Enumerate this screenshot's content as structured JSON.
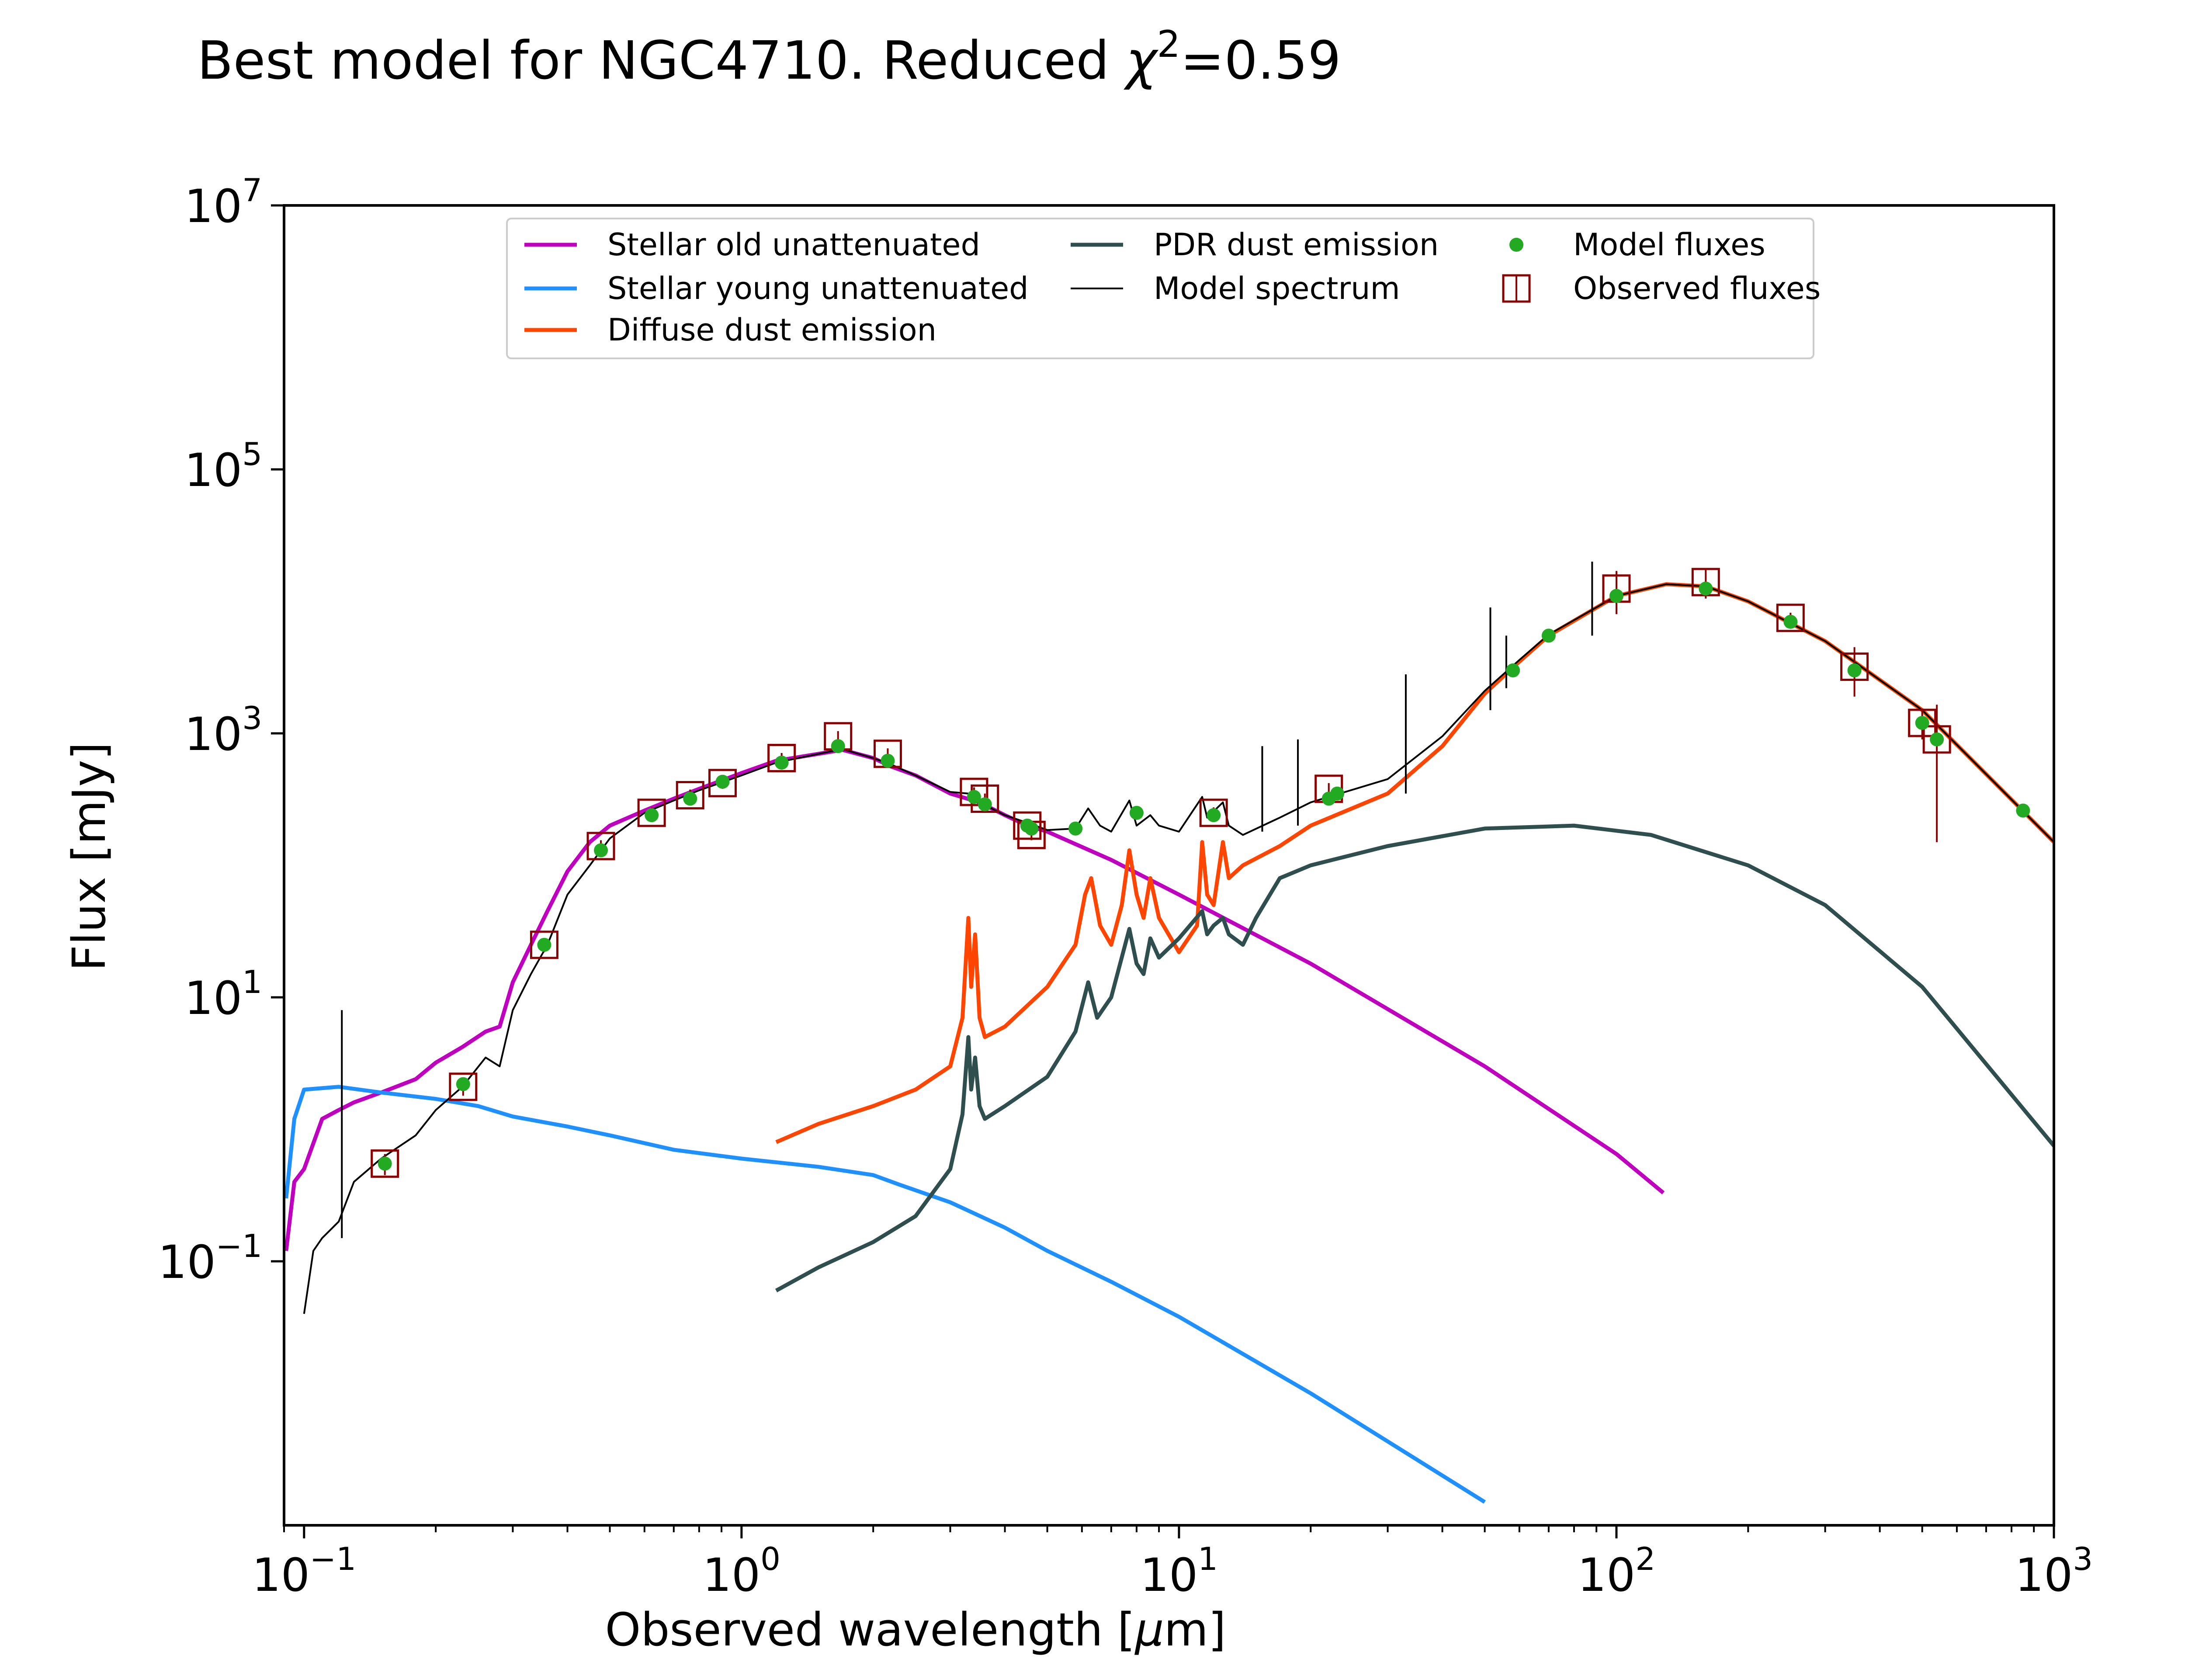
{
  "chart_data": {
    "type": "line",
    "title_main": "Best model for NGC4710. Reduced ",
    "title_chi": "χ",
    "title_sup": "2",
    "title_value": "=0.59",
    "xlabel_main": "Observed wavelength [",
    "xlabel_mu": "μ",
    "xlabel_end": "m]",
    "ylabel": "Flux [mJy]",
    "x_scale": "log",
    "y_scale": "log",
    "xlim": [
      0.09,
      1000
    ],
    "ylim": [
      0.001,
      10000000
    ],
    "x_ticks": [
      {
        "value": 0.1,
        "base": "10",
        "exp": "−1"
      },
      {
        "value": 1,
        "base": "10",
        "exp": "0"
      },
      {
        "value": 10,
        "base": "10",
        "exp": "1"
      },
      {
        "value": 100,
        "base": "10",
        "exp": "2"
      },
      {
        "value": 1000,
        "base": "10",
        "exp": "3"
      }
    ],
    "y_ticks": [
      {
        "value": 0.1,
        "base": "10",
        "exp": "−1"
      },
      {
        "value": 10,
        "base": "10",
        "exp": "1"
      },
      {
        "value": 1000,
        "base": "10",
        "exp": "3"
      },
      {
        "value": 100000,
        "base": "10",
        "exp": "5"
      },
      {
        "value": 10000000,
        "base": "10",
        "exp": "7"
      }
    ],
    "legend_position": "top-center",
    "legend": [
      {
        "label": "Stellar old unattenuated",
        "kind": "line",
        "color": "#bf00bf"
      },
      {
        "label": "Stellar young unattenuated",
        "kind": "line",
        "color": "#1e90ff"
      },
      {
        "label": "Diffuse dust emission",
        "kind": "line",
        "color": "#ff4500"
      },
      {
        "label": "PDR dust emission",
        "kind": "line",
        "color": "#2f4f4f"
      },
      {
        "label": "Model spectrum",
        "kind": "thinline",
        "color": "#000000"
      },
      {
        "label": "Model fluxes",
        "kind": "dot",
        "color": "#22aa22"
      },
      {
        "label": "Observed fluxes",
        "kind": "square",
        "color": "#8b0000"
      }
    ],
    "series": [
      {
        "name": "Stellar old unattenuated",
        "color": "#bf00bf",
        "points": [
          [
            0.091,
            0.12
          ],
          [
            0.095,
            0.4
          ],
          [
            0.1,
            0.5
          ],
          [
            0.11,
            1.2
          ],
          [
            0.12,
            1.4
          ],
          [
            0.13,
            1.6
          ],
          [
            0.15,
            1.9
          ],
          [
            0.18,
            2.4
          ],
          [
            0.2,
            3.2
          ],
          [
            0.23,
            4.2
          ],
          [
            0.26,
            5.5
          ],
          [
            0.28,
            6.0
          ],
          [
            0.3,
            13
          ],
          [
            0.33,
            25
          ],
          [
            0.36,
            45
          ],
          [
            0.4,
            90
          ],
          [
            0.45,
            150
          ],
          [
            0.5,
            200
          ],
          [
            0.6,
            260
          ],
          [
            0.7,
            320
          ],
          [
            0.8,
            380
          ],
          [
            1.0,
            500
          ],
          [
            1.2,
            620
          ],
          [
            1.5,
            700
          ],
          [
            1.7,
            750
          ],
          [
            2.0,
            650
          ],
          [
            2.2,
            560
          ],
          [
            2.5,
            480
          ],
          [
            3.0,
            350
          ],
          [
            3.5,
            300
          ],
          [
            4.0,
            240
          ],
          [
            4.5,
            200
          ],
          [
            5.0,
            180
          ],
          [
            7.0,
            110
          ],
          [
            10.0,
            60
          ],
          [
            20.0,
            18
          ],
          [
            50.0,
            3
          ],
          [
            100.0,
            0.65
          ],
          [
            128.0,
            0.33
          ]
        ]
      },
      {
        "name": "Stellar young unattenuated",
        "color": "#1e90ff",
        "points": [
          [
            0.091,
            0.3
          ],
          [
            0.095,
            1.2
          ],
          [
            0.1,
            2.0
          ],
          [
            0.12,
            2.1
          ],
          [
            0.15,
            1.9
          ],
          [
            0.2,
            1.7
          ],
          [
            0.25,
            1.5
          ],
          [
            0.3,
            1.25
          ],
          [
            0.4,
            1.05
          ],
          [
            0.5,
            0.9
          ],
          [
            0.7,
            0.7
          ],
          [
            1.0,
            0.6
          ],
          [
            1.5,
            0.52
          ],
          [
            2.0,
            0.45
          ],
          [
            2.3,
            0.38
          ],
          [
            3.0,
            0.28
          ],
          [
            4.0,
            0.18
          ],
          [
            5.0,
            0.12
          ],
          [
            7.0,
            0.07
          ],
          [
            10.0,
            0.038
          ],
          [
            20.0,
            0.01
          ],
          [
            50.0,
            0.0015
          ]
        ]
      },
      {
        "name": "Diffuse dust emission",
        "color": "#ff4500",
        "points": [
          [
            1.2,
            0.8
          ],
          [
            1.5,
            1.1
          ],
          [
            2.0,
            1.5
          ],
          [
            2.5,
            2.0
          ],
          [
            3.0,
            3.0
          ],
          [
            3.2,
            7
          ],
          [
            3.3,
            40
          ],
          [
            3.35,
            12
          ],
          [
            3.42,
            30
          ],
          [
            3.5,
            7
          ],
          [
            3.6,
            5
          ],
          [
            4.0,
            6
          ],
          [
            5.0,
            12
          ],
          [
            5.8,
            25
          ],
          [
            6.1,
            60
          ],
          [
            6.3,
            80
          ],
          [
            6.6,
            35
          ],
          [
            7.0,
            25
          ],
          [
            7.4,
            50
          ],
          [
            7.7,
            130
          ],
          [
            8.0,
            60
          ],
          [
            8.3,
            40
          ],
          [
            8.6,
            80
          ],
          [
            9.0,
            40
          ],
          [
            10.0,
            22
          ],
          [
            11.0,
            35
          ],
          [
            11.3,
            150
          ],
          [
            11.6,
            60
          ],
          [
            12.0,
            50
          ],
          [
            12.6,
            150
          ],
          [
            13.0,
            80
          ],
          [
            14.0,
            100
          ],
          [
            17.0,
            140
          ],
          [
            20.0,
            200
          ],
          [
            30.0,
            350
          ],
          [
            40.0,
            800
          ],
          [
            50.0,
            2000
          ],
          [
            60.0,
            3500
          ],
          [
            70.0,
            5500
          ],
          [
            100.0,
            11000
          ],
          [
            130.0,
            13500
          ],
          [
            160.0,
            13000
          ],
          [
            200.0,
            10000
          ],
          [
            300.0,
            5000
          ],
          [
            500.0,
            1500
          ],
          [
            1000.0,
            150
          ]
        ]
      },
      {
        "name": "PDR dust emission",
        "color": "#2f4f4f",
        "points": [
          [
            1.2,
            0.06
          ],
          [
            1.5,
            0.09
          ],
          [
            2.0,
            0.14
          ],
          [
            2.5,
            0.22
          ],
          [
            3.0,
            0.5
          ],
          [
            3.2,
            1.3
          ],
          [
            3.3,
            5
          ],
          [
            3.35,
            2
          ],
          [
            3.42,
            3.5
          ],
          [
            3.5,
            1.5
          ],
          [
            3.6,
            1.2
          ],
          [
            4.0,
            1.5
          ],
          [
            5.0,
            2.5
          ],
          [
            5.8,
            5.5
          ],
          [
            6.2,
            13
          ],
          [
            6.5,
            7
          ],
          [
            7.0,
            10
          ],
          [
            7.7,
            33
          ],
          [
            8.0,
            18
          ],
          [
            8.3,
            15
          ],
          [
            8.6,
            28
          ],
          [
            9.0,
            20
          ],
          [
            10.0,
            28
          ],
          [
            11.3,
            45
          ],
          [
            11.6,
            30
          ],
          [
            12.0,
            35
          ],
          [
            12.6,
            40
          ],
          [
            13.0,
            30
          ],
          [
            14.0,
            25
          ],
          [
            15.0,
            40
          ],
          [
            17.0,
            80
          ],
          [
            20.0,
            100
          ],
          [
            30.0,
            140
          ],
          [
            50.0,
            190
          ],
          [
            80.0,
            200
          ],
          [
            120.0,
            170
          ],
          [
            200.0,
            100
          ],
          [
            300.0,
            50
          ],
          [
            500.0,
            12
          ],
          [
            1000.0,
            0.75
          ]
        ]
      },
      {
        "name": "Model spectrum",
        "color": "#000000",
        "points": [
          [
            0.1,
            0.04
          ],
          [
            0.105,
            0.12
          ],
          [
            0.11,
            0.15
          ],
          [
            0.12,
            0.2
          ],
          [
            0.13,
            0.4
          ],
          [
            0.15,
            0.6
          ],
          [
            0.18,
            0.9
          ],
          [
            0.2,
            1.4
          ],
          [
            0.23,
            2.1
          ],
          [
            0.26,
            3.5
          ],
          [
            0.28,
            3.0
          ],
          [
            0.3,
            8
          ],
          [
            0.33,
            15
          ],
          [
            0.36,
            25
          ],
          [
            0.4,
            60
          ],
          [
            0.45,
            100
          ],
          [
            0.5,
            160
          ],
          [
            0.6,
            250
          ],
          [
            0.7,
            310
          ],
          [
            0.8,
            370
          ],
          [
            1.0,
            480
          ],
          [
            1.2,
            600
          ],
          [
            1.5,
            700
          ],
          [
            1.7,
            760
          ],
          [
            2.0,
            650
          ],
          [
            2.2,
            580
          ],
          [
            2.5,
            480
          ],
          [
            3.0,
            360
          ],
          [
            3.3,
            350
          ],
          [
            3.5,
            300
          ],
          [
            4.0,
            240
          ],
          [
            4.5,
            210
          ],
          [
            5.0,
            185
          ],
          [
            5.8,
            190
          ],
          [
            6.2,
            270
          ],
          [
            6.6,
            200
          ],
          [
            7.0,
            180
          ],
          [
            7.7,
            310
          ],
          [
            8.0,
            200
          ],
          [
            8.6,
            240
          ],
          [
            9.0,
            200
          ],
          [
            10.0,
            180
          ],
          [
            11.3,
            330
          ],
          [
            11.6,
            230
          ],
          [
            12.6,
            300
          ],
          [
            13.0,
            200
          ],
          [
            14.0,
            170
          ],
          [
            17.0,
            230
          ],
          [
            20.0,
            300
          ],
          [
            30.0,
            450
          ],
          [
            40.0,
            950
          ],
          [
            50.0,
            2100
          ],
          [
            60.0,
            3600
          ],
          [
            70.0,
            5600
          ],
          [
            100.0,
            11000
          ],
          [
            130.0,
            13500
          ],
          [
            160.0,
            13000
          ],
          [
            200.0,
            10000
          ],
          [
            300.0,
            5000
          ],
          [
            500.0,
            1500
          ],
          [
            1000.0,
            150
          ]
        ]
      }
    ],
    "spike_lines": [
      [
        0.122,
        0.15,
        8
      ],
      [
        15.5,
        180,
        800
      ],
      [
        18.7,
        200,
        900
      ],
      [
        33.0,
        350,
        2800
      ],
      [
        51.5,
        1500,
        9000
      ],
      [
        56.0,
        2200,
        5500
      ],
      [
        88.0,
        5500,
        20000
      ]
    ],
    "model_fluxes": [
      [
        0.153,
        0.55
      ],
      [
        0.231,
        2.2
      ],
      [
        0.354,
        25
      ],
      [
        0.477,
        130
      ],
      [
        0.623,
        240
      ],
      [
        0.763,
        320
      ],
      [
        0.905,
        430
      ],
      [
        1.235,
        600
      ],
      [
        1.662,
        800
      ],
      [
        2.159,
        620
      ],
      [
        3.4,
        330
      ],
      [
        3.6,
        290
      ],
      [
        4.5,
        200
      ],
      [
        4.6,
        190
      ],
      [
        5.8,
        190
      ],
      [
        8.0,
        250
      ],
      [
        12.0,
        240
      ],
      [
        22.0,
        320
      ],
      [
        23.0,
        350
      ],
      [
        58.0,
        3000
      ],
      [
        70.0,
        5500
      ],
      [
        100.0,
        11000
      ],
      [
        160.0,
        12500
      ],
      [
        250.0,
        7000
      ],
      [
        350.0,
        3000
      ],
      [
        500.0,
        1200
      ],
      [
        540.0,
        900
      ],
      [
        850.0,
        260
      ]
    ],
    "observed_fluxes": [
      [
        0.153,
        0.55,
        0.1
      ],
      [
        0.231,
        2.1,
        0.3
      ],
      [
        0.354,
        25,
        3
      ],
      [
        0.477,
        140,
        15
      ],
      [
        0.623,
        250,
        25
      ],
      [
        0.763,
        340,
        35
      ],
      [
        0.905,
        420,
        40
      ],
      [
        1.235,
        650,
        60
      ],
      [
        1.662,
        950,
        90
      ],
      [
        2.159,
        700,
        70
      ],
      [
        3.4,
        360,
        30
      ],
      [
        3.6,
        320,
        30
      ],
      [
        4.5,
        200,
        20
      ],
      [
        4.6,
        170,
        15
      ],
      [
        12.0,
        250,
        25
      ],
      [
        22.0,
        380,
        40
      ],
      [
        100.0,
        12500,
        4500
      ],
      [
        160.0,
        14000,
        3500
      ],
      [
        250.0,
        7500,
        700
      ],
      [
        350.0,
        3200,
        1300
      ],
      [
        500.0,
        1200,
        300
      ],
      [
        540.0,
        900,
        750
      ]
    ]
  }
}
